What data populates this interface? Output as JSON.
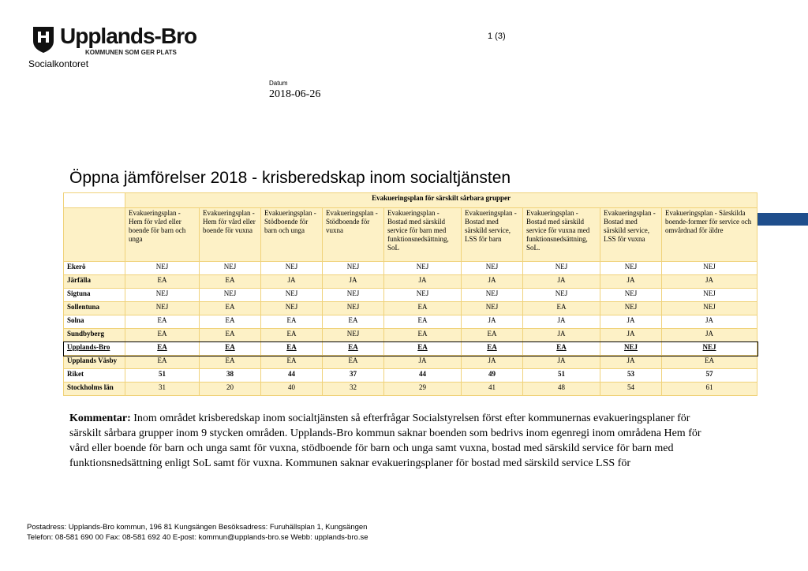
{
  "header": {
    "logo_name": "Upplands-Bro",
    "logo_tagline": "KOMMUNEN SOM GER PLATS",
    "department": "Socialkontoret",
    "page": "1 (3)",
    "date_label": "Datum",
    "date": "2018-06-26"
  },
  "title": "Öppna jämförelser 2018 - krisberedskap inom socialtjänsten",
  "table": {
    "group_header": "Evakueringsplan för särskilt sårbara grupper",
    "columns": [
      "Evakueringsplan - Hem för vård eller boende för barn och unga",
      "Evakueringsplan - Hem för vård eller boende för vuxna",
      "Evakueringsplan - Stödboende för barn och unga",
      "Evakueringsplan - Stödboende för vuxna",
      "Evakueringsplan - Bostad med särskild service för barn med funktionsnedsättning, SoL",
      "Evakueringsplan - Bostad med särskild service, LSS för barn",
      "Evakueringsplan - Bostad med särskild service för vuxna med funktionsnedsättning, SoL.",
      "Evakueringsplan - Bostad med särskild service, LSS för vuxna",
      "Evakueringsplan - Särskilda boende-former för service och omvårdnad för äldre"
    ],
    "rows": [
      {
        "name": "Ekerö",
        "cells": [
          "NEJ",
          "NEJ",
          "NEJ",
          "NEJ",
          "NEJ",
          "NEJ",
          "NEJ",
          "NEJ",
          "NEJ"
        ]
      },
      {
        "name": "Järfälla",
        "cells": [
          "EA",
          "EA",
          "JA",
          "JA",
          "JA",
          "JA",
          "JA",
          "JA",
          "JA"
        ]
      },
      {
        "name": "Sigtuna",
        "cells": [
          "NEJ",
          "NEJ",
          "NEJ",
          "NEJ",
          "NEJ",
          "NEJ",
          "NEJ",
          "NEJ",
          "NEJ"
        ]
      },
      {
        "name": "Sollentuna",
        "cells": [
          "NEJ",
          "EA",
          "NEJ",
          "NEJ",
          "EA",
          "NEJ",
          "EA",
          "NEJ",
          "NEJ"
        ]
      },
      {
        "name": "Solna",
        "cells": [
          "EA",
          "EA",
          "EA",
          "EA",
          "EA",
          "JA",
          "JA",
          "JA",
          "JA"
        ]
      },
      {
        "name": "Sundbyberg",
        "cells": [
          "EA",
          "EA",
          "EA",
          "NEJ",
          "EA",
          "EA",
          "JA",
          "JA",
          "JA"
        ]
      },
      {
        "name": "Upplands-Bro",
        "cells": [
          "EA",
          "EA",
          "EA",
          "EA",
          "EA",
          "EA",
          "EA",
          "NEJ",
          "NEJ"
        ]
      },
      {
        "name": "Upplands Väsby",
        "cells": [
          "EA",
          "EA",
          "EA",
          "EA",
          "JA",
          "JA",
          "JA",
          "JA",
          "EA"
        ]
      },
      {
        "name": "Riket",
        "cells": [
          51,
          38,
          44,
          37,
          44,
          49,
          51,
          53,
          57
        ]
      },
      {
        "name": "Stockholms län",
        "cells": [
          31,
          20,
          40,
          32,
          29,
          41,
          48,
          54,
          61
        ]
      }
    ]
  },
  "comment": {
    "label": "Kommentar:",
    "text": "Inom området krisberedskap inom socialtjänsten så efterfrågar Socialstyrelsen först efter kommunernas evakueringsplaner för särskilt sårbara grupper inom 9 stycken områden. Upplands-Bro kommun saknar boenden som bedrivs inom egenregi inom områdena Hem för vård eller boende för barn och unga samt för vuxna, stödboende för barn och unga samt vuxna, bostad med särskild service för barn med funktionsnedsättning enligt SoL samt för vuxna. Kommunen saknar evakueringsplaner för bostad med särskild service LSS för"
  },
  "footer": {
    "line1": "Postadress: Upplands-Bro kommun, 196 81 Kungsängen   Besöksadress: Furuhällsplan 1, Kungsängen",
    "line2": "Telefon: 08-581 690 00   Fax: 08-581 692 40   E-post: kommun@upplands-bro.se   Webb: upplands-bro.se"
  }
}
